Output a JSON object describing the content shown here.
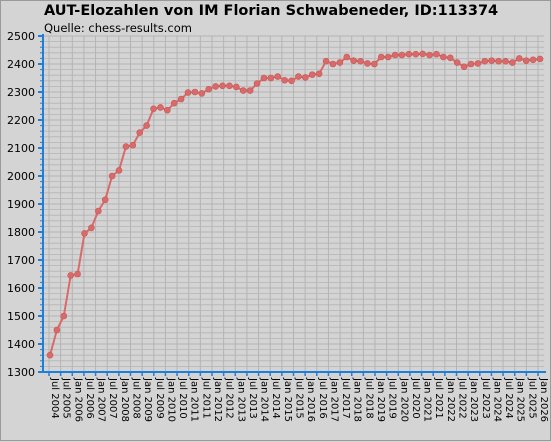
{
  "chart_data": {
    "type": "line",
    "title": "AUT-Elozahlen von IM Florian Schwabeneder, ID:113374",
    "subtitle": "Quelle: chess-results.com",
    "xlabel": "",
    "ylabel": "",
    "ylim": [
      1300,
      2500
    ],
    "yticks": [
      1300,
      1400,
      1500,
      1600,
      1700,
      1800,
      1900,
      2000,
      2100,
      2200,
      2300,
      2400,
      2500
    ],
    "grid": true,
    "legend": "none",
    "xtick_labels": [
      "Jul 2004",
      "Jul 2005",
      "Jan 2006",
      "Jul 2006",
      "Jan 2007",
      "Jul 2007",
      "Jan 2008",
      "Jul 2008",
      "Jan 2009",
      "Jul 2009",
      "Jan 2010",
      "Jul 2010",
      "Jan 2011",
      "Jul 2011",
      "Jan 2012",
      "Jul 2012",
      "Jan 2013",
      "Jul 2013",
      "Jan 2014",
      "Jul 2014",
      "Jan 2015",
      "Jul 2015",
      "Jan 2016",
      "Jul 2016",
      "Jan 2017",
      "Jul 2017",
      "Jan 2018",
      "Jul 2018",
      "Jan 2019",
      "Jul 2019",
      "Jan 2020",
      "Jul 2020",
      "Jan 2021",
      "Jul 2021",
      "Jan 2022",
      "Jul 2022",
      "Jan 2023",
      "Jul 2023",
      "Jan 2024",
      "Jul 2024",
      "Jan 2025",
      "Jul 2025",
      "Jan 2026"
    ],
    "series": [
      {
        "values": [
          1360,
          1450,
          1500,
          1645,
          1650,
          1795,
          1815,
          1875,
          1915,
          2000,
          2020,
          2105,
          2110,
          2155,
          2180,
          2240,
          2245,
          2235,
          2260,
          2275,
          2298,
          2300,
          2295,
          2310,
          2320,
          2322,
          2322,
          2318,
          2305,
          2305,
          2330,
          2350,
          2350,
          2355,
          2342,
          2340,
          2355,
          2352,
          2362,
          2365,
          2410,
          2400,
          2405,
          2425,
          2412,
          2410,
          2402,
          2400,
          2425,
          2425,
          2432,
          2432,
          2435,
          2435,
          2436,
          2432,
          2435,
          2425,
          2422,
          2405,
          2390,
          2400,
          2402,
          2410,
          2412,
          2410,
          2410,
          2405,
          2420,
          2412,
          2415,
          2418
        ]
      }
    ],
    "colors": {
      "line": "#d96a6a",
      "marker": "#d96a6a",
      "grid": "#b4b4b4",
      "axis": "#1e7fd8",
      "plot_background": "#d4d4d4"
    }
  }
}
